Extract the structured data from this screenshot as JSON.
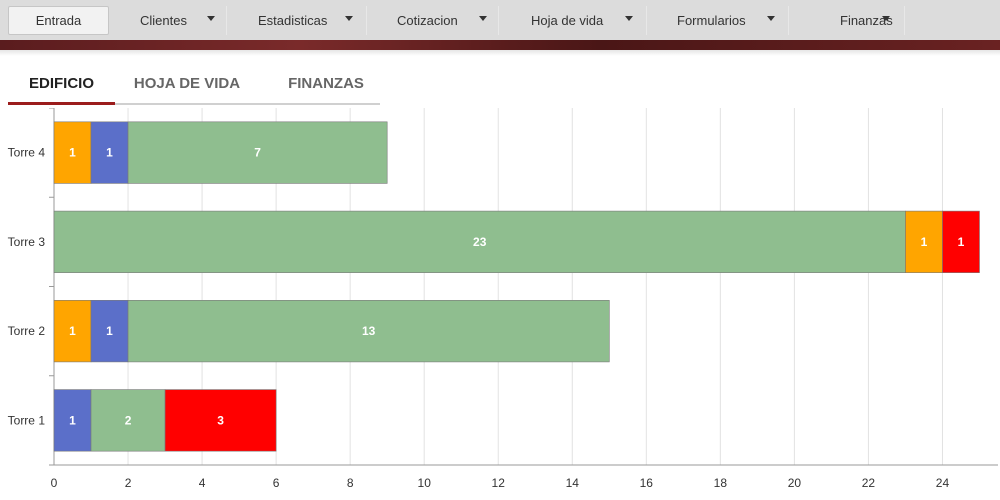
{
  "nav": {
    "items": [
      {
        "label": "Entrada",
        "dropdown": false
      },
      {
        "label": "Clientes",
        "dropdown": true
      },
      {
        "label": "Estadisticas",
        "dropdown": true
      },
      {
        "label": "Cotizacion",
        "dropdown": true
      },
      {
        "label": "Hoja de vida",
        "dropdown": true
      },
      {
        "label": "Formularios",
        "dropdown": true
      },
      {
        "label": "Finanzas",
        "dropdown": true
      }
    ]
  },
  "tabs": [
    {
      "label": "EDIFICIO",
      "active": true
    },
    {
      "label": "HOJA DE VIDA",
      "active": false
    },
    {
      "label": "FINANZAS",
      "active": false
    }
  ],
  "colors": {
    "orange": "#ffa500",
    "blue": "#5b6fc9",
    "green": "#8fbe8f",
    "red": "#ff0000",
    "accent": "#9b1c1c"
  },
  "chart_data": {
    "type": "bar",
    "orientation": "horizontal",
    "stacked": true,
    "categories": [
      "Torre 4",
      "Torre 3",
      "Torre 2",
      "Torre 1"
    ],
    "xlim": [
      0,
      25.5
    ],
    "xticks": [
      0,
      2,
      4,
      6,
      8,
      10,
      12,
      14,
      16,
      18,
      20,
      22,
      24
    ],
    "grid": true,
    "legend": "none",
    "bars": [
      {
        "category": "Torre 4",
        "segments": [
          {
            "value": 1,
            "color": "#ffa500"
          },
          {
            "value": 1,
            "color": "#5b6fc9"
          },
          {
            "value": 7,
            "color": "#8fbe8f"
          }
        ]
      },
      {
        "category": "Torre 3",
        "segments": [
          {
            "value": 23,
            "color": "#8fbe8f"
          },
          {
            "value": 1,
            "color": "#ffa500"
          },
          {
            "value": 1,
            "color": "#ff0000"
          }
        ]
      },
      {
        "category": "Torre 2",
        "segments": [
          {
            "value": 1,
            "color": "#ffa500"
          },
          {
            "value": 1,
            "color": "#5b6fc9"
          },
          {
            "value": 13,
            "color": "#8fbe8f"
          }
        ]
      },
      {
        "category": "Torre 1",
        "segments": [
          {
            "value": 1,
            "color": "#5b6fc9"
          },
          {
            "value": 2,
            "color": "#8fbe8f"
          },
          {
            "value": 3,
            "color": "#ff0000"
          }
        ]
      }
    ]
  }
}
